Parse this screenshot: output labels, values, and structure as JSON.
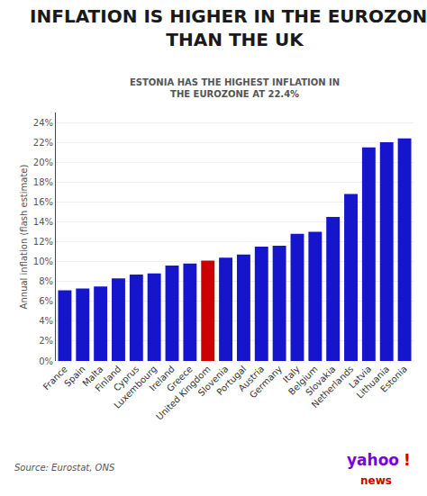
{
  "chart_data": {
    "type": "bar",
    "title": "INFLATION IS HIGHER IN THE EUROZONE\nTHAN THE UK",
    "subtitle": "ESTONIA HAS THE HIGHEST INFLATION IN\nTHE EUROZONE AT 22.4%",
    "ylabel": "Annual inflation (flash estimate)",
    "categories": [
      "France",
      "Spain",
      "Malta",
      "Finland",
      "Cyprus",
      "Luxembourg",
      "Ireland",
      "Greece",
      "United Kingdom",
      "Slovenia",
      "Portugal",
      "Austria",
      "Germany",
      "Italy",
      "Belgium",
      "Slovakia",
      "Netherlands",
      "Latvia",
      "Lithuania",
      "Estonia"
    ],
    "values": [
      7.1,
      7.3,
      7.5,
      8.3,
      8.7,
      8.8,
      9.6,
      9.8,
      10.1,
      10.4,
      10.7,
      11.5,
      11.6,
      12.8,
      13.0,
      14.5,
      16.8,
      21.5,
      22.0,
      22.4
    ],
    "colors": [
      "#1515cc",
      "#1515cc",
      "#1515cc",
      "#1515cc",
      "#1515cc",
      "#1515cc",
      "#1515cc",
      "#1515cc",
      "#cc0000",
      "#1515cc",
      "#1515cc",
      "#1515cc",
      "#1515cc",
      "#1515cc",
      "#1515cc",
      "#1515cc",
      "#1515cc",
      "#1515cc",
      "#1515cc",
      "#1515cc"
    ],
    "ylim": [
      0,
      25
    ],
    "yticks": [
      {
        "value": 0,
        "label": "0%"
      },
      {
        "value": 2,
        "label": "2%"
      },
      {
        "value": 4,
        "label": "4%"
      },
      {
        "value": 6,
        "label": "6%"
      },
      {
        "value": 8,
        "label": "8%"
      },
      {
        "value": 10,
        "label": "10%"
      },
      {
        "value": 12,
        "label": "12%"
      },
      {
        "value": 14,
        "label": "14%"
      },
      {
        "value": 16,
        "label": "16%"
      },
      {
        "value": 18,
        "label": "18%"
      },
      {
        "value": 20,
        "label": "20%"
      },
      {
        "value": 22,
        "label": "22%"
      },
      {
        "value": 24,
        "label": "24%"
      }
    ],
    "grid": true,
    "annotations": [
      {
        "text": "Source: Eurostat, ONS"
      },
      {
        "text": "yahoo",
        "color": "#7B00E0"
      },
      {
        "text": "!",
        "color": "#cc0000"
      },
      {
        "text": "news",
        "color": "#cc0000"
      }
    ]
  }
}
